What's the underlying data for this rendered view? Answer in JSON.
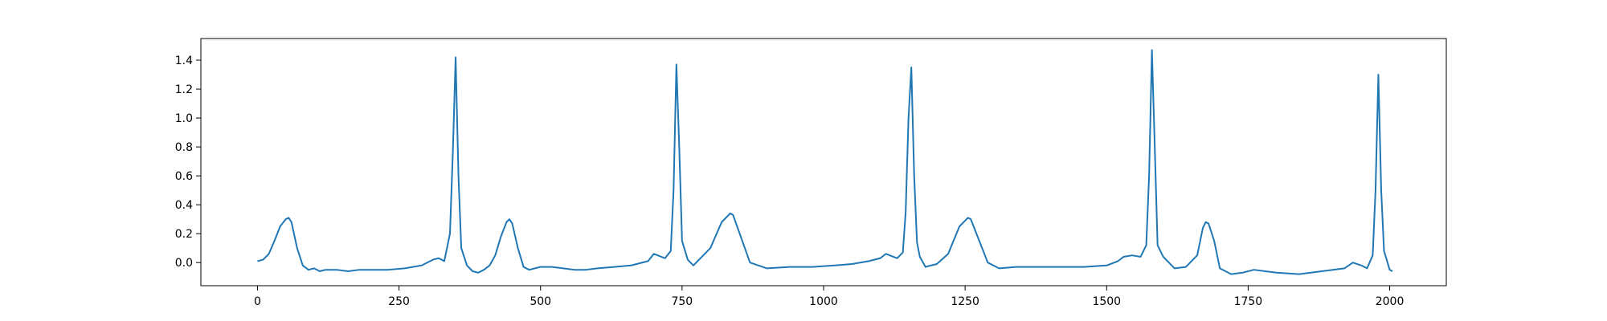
{
  "chart_data": {
    "type": "line",
    "title": "",
    "xlabel": "",
    "ylabel": "",
    "xlim": [
      -100,
      2100
    ],
    "ylim": [
      -0.16,
      1.55
    ],
    "xticks": [
      0,
      250,
      500,
      750,
      1000,
      1250,
      1500,
      1750,
      2000
    ],
    "yticks": [
      0.0,
      0.2,
      0.4,
      0.6,
      0.8,
      1.0,
      1.2,
      1.4
    ],
    "xtick_labels": [
      "0",
      "250",
      "500",
      "750",
      "1000",
      "1250",
      "1500",
      "1750",
      "2000"
    ],
    "ytick_labels": [
      "0.0",
      "0.2",
      "0.4",
      "0.6",
      "0.8",
      "1.0",
      "1.2",
      "1.4"
    ],
    "grid": false,
    "line_color": "#1f77b4",
    "series": [
      {
        "x": [
          0,
          10,
          20,
          30,
          40,
          50,
          55,
          60,
          70,
          80,
          90,
          100,
          110,
          120,
          140,
          160,
          180,
          200,
          230,
          260,
          290,
          310,
          320,
          330,
          340,
          345,
          350,
          355,
          360,
          370,
          380,
          390,
          400,
          410,
          420,
          430,
          440,
          445,
          450,
          460,
          470,
          480,
          490,
          500,
          520,
          540,
          560,
          580,
          600,
          630,
          660,
          690,
          700,
          720,
          730,
          735,
          740,
          745,
          750,
          760,
          770,
          780,
          800,
          820,
          835,
          840,
          850,
          870,
          900,
          940,
          980,
          1020,
          1050,
          1080,
          1100,
          1110,
          1130,
          1140,
          1145,
          1150,
          1155,
          1160,
          1165,
          1170,
          1180,
          1190,
          1200,
          1220,
          1240,
          1255,
          1260,
          1270,
          1290,
          1310,
          1340,
          1380,
          1420,
          1460,
          1500,
          1520,
          1530,
          1545,
          1560,
          1570,
          1575,
          1580,
          1585,
          1590,
          1600,
          1620,
          1640,
          1660,
          1670,
          1675,
          1680,
          1690,
          1700,
          1720,
          1740,
          1760,
          1800,
          1840,
          1880,
          1920,
          1935,
          1950,
          1960,
          1970,
          1975,
          1980,
          1985,
          1990,
          2000,
          2005
        ],
        "y": [
          0.01,
          0.02,
          0.06,
          0.15,
          0.25,
          0.3,
          0.31,
          0.28,
          0.1,
          -0.02,
          -0.05,
          -0.04,
          -0.06,
          -0.05,
          -0.05,
          -0.06,
          -0.05,
          -0.05,
          -0.05,
          -0.04,
          -0.02,
          0.02,
          0.03,
          0.01,
          0.2,
          0.75,
          1.42,
          0.6,
          0.1,
          -0.02,
          -0.06,
          -0.07,
          -0.05,
          -0.02,
          0.05,
          0.18,
          0.28,
          0.3,
          0.27,
          0.1,
          -0.03,
          -0.05,
          -0.04,
          -0.03,
          -0.03,
          -0.04,
          -0.05,
          -0.05,
          -0.04,
          -0.03,
          -0.02,
          0.01,
          0.06,
          0.03,
          0.08,
          0.5,
          1.37,
          0.8,
          0.15,
          0.02,
          -0.02,
          0.02,
          0.1,
          0.28,
          0.34,
          0.33,
          0.22,
          0.0,
          -0.04,
          -0.03,
          -0.03,
          -0.02,
          -0.01,
          0.01,
          0.03,
          0.06,
          0.03,
          0.07,
          0.35,
          1.0,
          1.35,
          0.6,
          0.14,
          0.04,
          -0.03,
          -0.02,
          -0.01,
          0.06,
          0.25,
          0.31,
          0.3,
          0.2,
          0.0,
          -0.04,
          -0.03,
          -0.03,
          -0.03,
          -0.03,
          -0.02,
          0.01,
          0.04,
          0.05,
          0.04,
          0.12,
          0.6,
          1.47,
          0.8,
          0.12,
          0.04,
          -0.04,
          -0.03,
          0.05,
          0.24,
          0.28,
          0.27,
          0.15,
          -0.04,
          -0.08,
          -0.07,
          -0.05,
          -0.07,
          -0.08,
          -0.06,
          -0.04,
          0.0,
          -0.02,
          -0.04,
          0.05,
          0.5,
          1.3,
          0.5,
          0.08,
          -0.05,
          -0.06
        ]
      }
    ]
  }
}
